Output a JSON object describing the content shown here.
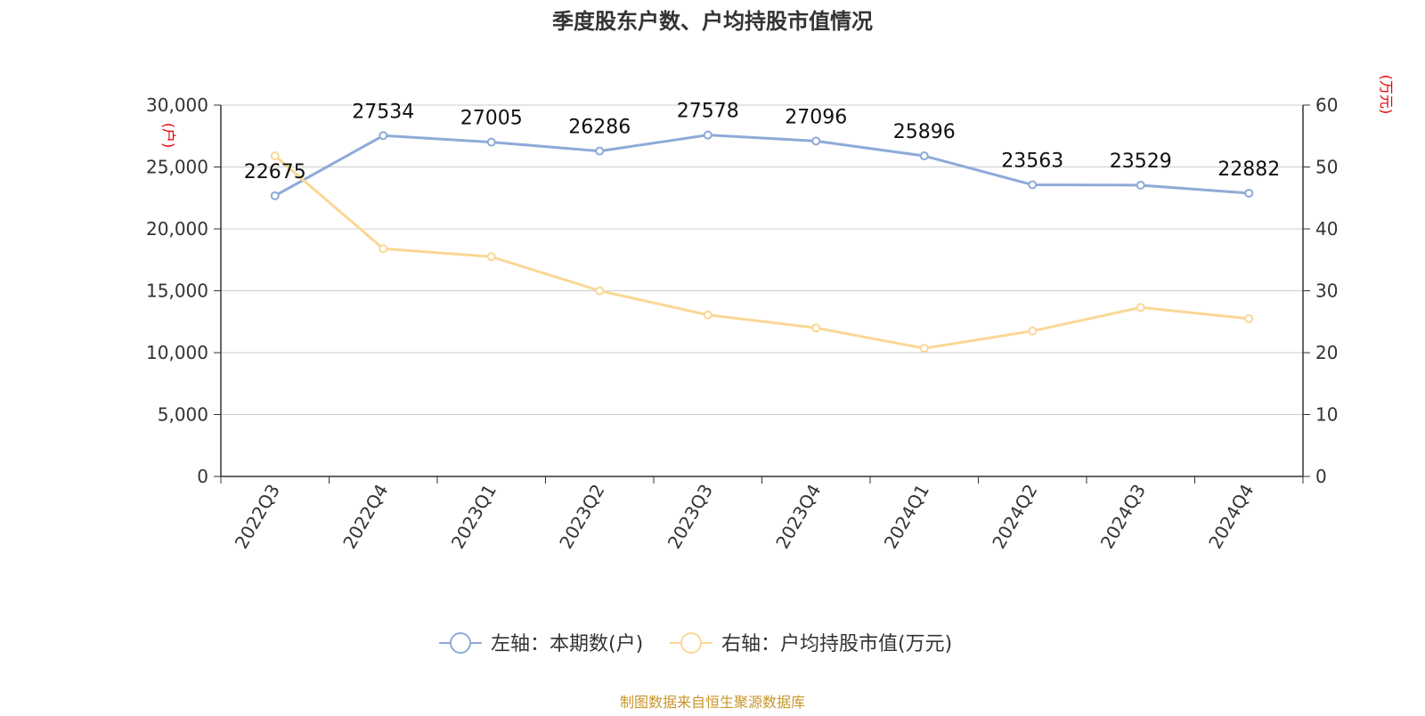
{
  "chart_data": {
    "type": "line",
    "title": "季度股东户数、户均持股市值情况",
    "x": [
      "2022Q3",
      "2022Q4",
      "2023Q1",
      "2023Q2",
      "2023Q3",
      "2023Q4",
      "2024Q1",
      "2024Q2",
      "2024Q3",
      "2024Q4"
    ],
    "y_left": {
      "label": "(户)",
      "ylim": [
        0,
        30000
      ],
      "ticks": [
        0,
        5000,
        10000,
        15000,
        20000,
        25000,
        30000
      ],
      "tick_labels": [
        "0",
        "5,000",
        "10,000",
        "15,000",
        "20,000",
        "25,000",
        "30,000"
      ]
    },
    "y_right": {
      "label": "(万元)",
      "ylim": [
        0,
        60
      ],
      "ticks": [
        0,
        10,
        20,
        30,
        40,
        50,
        60
      ],
      "tick_labels": [
        "0",
        "10",
        "20",
        "30",
        "40",
        "50",
        "60"
      ]
    },
    "series": [
      {
        "name": "左轴：本期数(户)",
        "axis": "left",
        "color": "#8eaad8",
        "values": [
          22675,
          27534,
          27005,
          26286,
          27578,
          27096,
          25896,
          23563,
          23529,
          22882
        ],
        "data_labels": [
          "22675",
          "27534",
          "27005",
          "26286",
          "27578",
          "27096",
          "25896",
          "23563",
          "23529",
          "22882"
        ]
      },
      {
        "name": "右轴：户均持股市值(万元)",
        "axis": "right",
        "color": "#fbd796",
        "values": [
          51.8,
          36.8,
          35.5,
          30.0,
          26.1,
          24.0,
          20.7,
          23.5,
          27.3,
          25.5
        ]
      }
    ],
    "grid": true,
    "legend_position": "bottom-center",
    "axis_label_color": "#e60000"
  },
  "source": "制图数据来自恒生聚源数据库",
  "source_color": "#c8962a"
}
